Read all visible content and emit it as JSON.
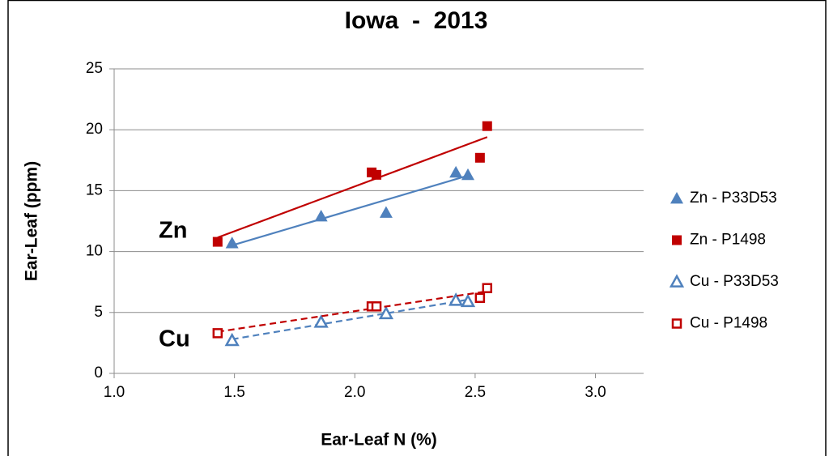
{
  "chart_data": {
    "type": "scatter",
    "title": "Iowa  -  2013",
    "x_label": "Ear-Leaf N (%)",
    "y_label": "Ear-Leaf (ppm)",
    "annotations": [
      "Zn",
      "Cu"
    ],
    "xlim": [
      1.0,
      3.2
    ],
    "xticks": [
      {
        "value": 1.0,
        "label": "1.0"
      },
      1.5,
      {
        "value": 2.0,
        "label": "2.0"
      },
      2.5,
      {
        "value": 3.0,
        "label": "3.0"
      }
    ],
    "ylim": [
      0,
      25
    ],
    "yticks": [
      0,
      5,
      10,
      15,
      20,
      25
    ],
    "grid": true,
    "legend": "right",
    "trendline": "linear",
    "series": [
      {
        "name": "Zn - P33D53",
        "color": "#4f81bd",
        "marker": "triangle",
        "filled": true,
        "line_style": "solid",
        "x": [
          1.49,
          1.86,
          2.13,
          2.42,
          2.47
        ],
        "values": [
          10.7,
          12.9,
          13.2,
          16.5,
          16.3
        ]
      },
      {
        "name": "Zn - P1498",
        "color": "#c00000",
        "marker": "square",
        "filled": true,
        "line_style": "solid",
        "x": [
          1.43,
          2.07,
          2.09,
          2.52,
          2.55
        ],
        "values": [
          10.8,
          16.5,
          16.3,
          17.7,
          20.3
        ]
      },
      {
        "name": "Cu - P33D53",
        "color": "#4f81bd",
        "marker": "triangle",
        "filled": false,
        "line_style": "dashed",
        "x": [
          1.49,
          1.86,
          2.13,
          2.42,
          2.47
        ],
        "values": [
          2.7,
          4.2,
          4.9,
          6.0,
          5.9
        ]
      },
      {
        "name": "Cu - P1498",
        "color": "#c00000",
        "marker": "square",
        "filled": false,
        "line_style": "dashed",
        "x": [
          1.43,
          2.07,
          2.09,
          2.52,
          2.55
        ],
        "values": [
          3.3,
          5.5,
          5.5,
          6.2,
          7.0
        ]
      }
    ]
  }
}
